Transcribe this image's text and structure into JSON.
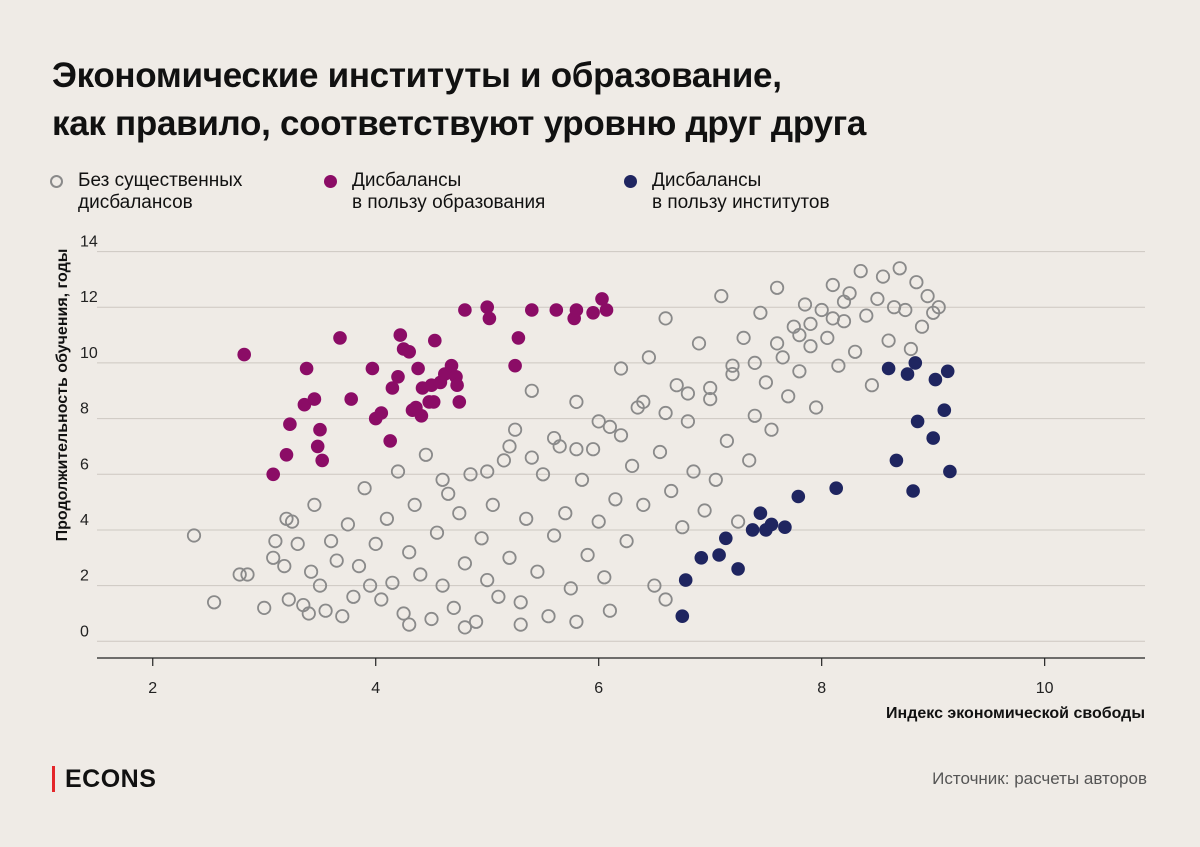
{
  "brand": {
    "name": "ECONS",
    "accent_color": "#e4262a",
    "source": "Источник: расчеты авторов"
  },
  "chart_data": {
    "type": "scatter",
    "title_lines": [
      "Экономические институты и образование,",
      "как правило, соответствуют уровню друг друга"
    ],
    "xlabel": "Индекс экономической свободы",
    "ylabel": "Продолжительность обучения, годы",
    "xlim": [
      1.5,
      10.9
    ],
    "ylim": [
      -0.6,
      14.2
    ],
    "xticks": [
      2,
      4,
      6,
      8,
      10
    ],
    "yticks": [
      0,
      2,
      4,
      6,
      8,
      10,
      12,
      14
    ],
    "grid": "horizontal",
    "legend_position": "top",
    "series": [
      {
        "name": "Без существенных дисбалансов",
        "name_lines": [
          "Без существенных",
          "дисбалансов"
        ],
        "style": "hollow",
        "color": "#8a8a8a",
        "points": [
          [
            2.37,
            3.8
          ],
          [
            2.55,
            1.4
          ],
          [
            2.78,
            2.4
          ],
          [
            2.85,
            2.4
          ],
          [
            3.0,
            1.2
          ],
          [
            3.08,
            3.0
          ],
          [
            3.1,
            3.6
          ],
          [
            3.18,
            2.7
          ],
          [
            3.2,
            4.4
          ],
          [
            3.22,
            1.5
          ],
          [
            3.25,
            4.3
          ],
          [
            3.3,
            3.5
          ],
          [
            3.35,
            1.3
          ],
          [
            3.4,
            1.0
          ],
          [
            3.42,
            2.5
          ],
          [
            3.45,
            4.9
          ],
          [
            3.5,
            2.0
          ],
          [
            3.55,
            1.1
          ],
          [
            3.6,
            3.6
          ],
          [
            3.65,
            2.9
          ],
          [
            3.7,
            0.9
          ],
          [
            3.75,
            4.2
          ],
          [
            3.8,
            1.6
          ],
          [
            3.85,
            2.7
          ],
          [
            3.9,
            5.5
          ],
          [
            3.95,
            2.0
          ],
          [
            4.0,
            3.5
          ],
          [
            4.05,
            1.5
          ],
          [
            4.1,
            4.4
          ],
          [
            4.15,
            2.1
          ],
          [
            4.2,
            6.1
          ],
          [
            4.25,
            1.0
          ],
          [
            4.3,
            3.2
          ],
          [
            4.35,
            4.9
          ],
          [
            4.4,
            2.4
          ],
          [
            4.45,
            6.7
          ],
          [
            4.5,
            0.8
          ],
          [
            4.55,
            3.9
          ],
          [
            4.6,
            2.0
          ],
          [
            4.65,
            5.3
          ],
          [
            4.7,
            1.2
          ],
          [
            4.75,
            4.6
          ],
          [
            4.8,
            2.8
          ],
          [
            4.85,
            6.0
          ],
          [
            4.9,
            0.7
          ],
          [
            4.95,
            3.7
          ],
          [
            5.0,
            2.2
          ],
          [
            5.05,
            4.9
          ],
          [
            5.1,
            1.6
          ],
          [
            5.15,
            6.5
          ],
          [
            5.2,
            3.0
          ],
          [
            5.25,
            7.6
          ],
          [
            5.3,
            1.4
          ],
          [
            5.35,
            4.4
          ],
          [
            5.4,
            9.0
          ],
          [
            5.45,
            2.5
          ],
          [
            5.5,
            6.0
          ],
          [
            5.55,
            0.9
          ],
          [
            5.6,
            3.8
          ],
          [
            5.65,
            7.0
          ],
          [
            5.7,
            4.6
          ],
          [
            5.75,
            1.9
          ],
          [
            5.8,
            8.6
          ],
          [
            5.85,
            5.8
          ],
          [
            5.9,
            3.1
          ],
          [
            5.95,
            6.9
          ],
          [
            6.0,
            4.3
          ],
          [
            6.05,
            2.3
          ],
          [
            6.1,
            7.7
          ],
          [
            6.15,
            5.1
          ],
          [
            6.2,
            9.8
          ],
          [
            6.25,
            3.6
          ],
          [
            6.3,
            6.3
          ],
          [
            6.35,
            8.4
          ],
          [
            6.4,
            4.9
          ],
          [
            6.45,
            10.2
          ],
          [
            6.5,
            2.0
          ],
          [
            6.55,
            6.8
          ],
          [
            6.6,
            11.6
          ],
          [
            6.65,
            5.4
          ],
          [
            6.7,
            9.2
          ],
          [
            6.75,
            4.1
          ],
          [
            6.8,
            7.9
          ],
          [
            6.85,
            6.1
          ],
          [
            6.9,
            10.7
          ],
          [
            6.95,
            4.7
          ],
          [
            7.0,
            8.7
          ],
          [
            7.05,
            5.8
          ],
          [
            7.1,
            12.4
          ],
          [
            7.15,
            7.2
          ],
          [
            7.2,
            9.6
          ],
          [
            7.25,
            4.3
          ],
          [
            7.3,
            10.9
          ],
          [
            7.35,
            6.5
          ],
          [
            7.4,
            8.1
          ],
          [
            7.45,
            11.8
          ],
          [
            7.5,
            9.3
          ],
          [
            7.55,
            7.6
          ],
          [
            7.6,
            12.7
          ],
          [
            7.65,
            10.2
          ],
          [
            7.7,
            8.8
          ],
          [
            7.75,
            11.3
          ],
          [
            7.8,
            9.7
          ],
          [
            7.85,
            12.1
          ],
          [
            7.9,
            10.6
          ],
          [
            7.95,
            8.4
          ],
          [
            8.0,
            11.9
          ],
          [
            8.05,
            10.9
          ],
          [
            8.1,
            12.8
          ],
          [
            8.15,
            9.9
          ],
          [
            8.2,
            11.5
          ],
          [
            8.25,
            12.5
          ],
          [
            8.3,
            10.4
          ],
          [
            8.35,
            13.3
          ],
          [
            8.4,
            11.7
          ],
          [
            8.45,
            9.2
          ],
          [
            8.5,
            12.3
          ],
          [
            8.55,
            13.1
          ],
          [
            8.6,
            10.8
          ],
          [
            8.65,
            12.0
          ],
          [
            8.7,
            13.4
          ],
          [
            8.75,
            11.9
          ],
          [
            8.8,
            10.5
          ],
          [
            8.85,
            12.9
          ],
          [
            8.9,
            11.3
          ],
          [
            8.95,
            12.4
          ],
          [
            9.0,
            11.8
          ],
          [
            9.05,
            12.0
          ],
          [
            5.2,
            7.0
          ],
          [
            5.6,
            7.3
          ],
          [
            6.0,
            7.9
          ],
          [
            6.4,
            8.6
          ],
          [
            6.8,
            8.9
          ],
          [
            7.2,
            9.9
          ],
          [
            7.6,
            10.7
          ],
          [
            7.9,
            11.4
          ],
          [
            8.2,
            12.2
          ],
          [
            4.6,
            5.8
          ],
          [
            5.0,
            6.1
          ],
          [
            5.4,
            6.6
          ],
          [
            5.8,
            6.9
          ],
          [
            6.2,
            7.4
          ],
          [
            6.6,
            8.2
          ],
          [
            7.0,
            9.1
          ],
          [
            7.4,
            10.0
          ],
          [
            7.8,
            11.0
          ],
          [
            8.1,
            11.6
          ],
          [
            4.3,
            0.6
          ],
          [
            4.8,
            0.5
          ],
          [
            5.3,
            0.6
          ],
          [
            5.8,
            0.7
          ],
          [
            6.1,
            1.1
          ],
          [
            6.6,
            1.5
          ]
        ]
      },
      {
        "name": "Дисбалансы в пользу образования",
        "name_lines": [
          "Дисбалансы",
          "в пользу образования"
        ],
        "style": "filled",
        "color": "#8b0c66",
        "points": [
          [
            2.82,
            10.3
          ],
          [
            3.08,
            6.0
          ],
          [
            3.2,
            6.7
          ],
          [
            3.23,
            7.8
          ],
          [
            3.36,
            8.5
          ],
          [
            3.38,
            9.8
          ],
          [
            3.45,
            8.7
          ],
          [
            3.48,
            7.0
          ],
          [
            3.5,
            7.6
          ],
          [
            3.52,
            6.5
          ],
          [
            3.68,
            10.9
          ],
          [
            3.78,
            8.7
          ],
          [
            3.97,
            9.8
          ],
          [
            4.0,
            8.0
          ],
          [
            4.05,
            8.2
          ],
          [
            4.13,
            7.2
          ],
          [
            4.15,
            9.1
          ],
          [
            4.2,
            9.5
          ],
          [
            4.22,
            11.0
          ],
          [
            4.25,
            10.5
          ],
          [
            4.3,
            10.4
          ],
          [
            4.33,
            8.3
          ],
          [
            4.36,
            8.4
          ],
          [
            4.38,
            9.8
          ],
          [
            4.41,
            8.1
          ],
          [
            4.42,
            9.1
          ],
          [
            4.48,
            8.6
          ],
          [
            4.5,
            9.2
          ],
          [
            4.52,
            8.6
          ],
          [
            4.53,
            10.8
          ],
          [
            4.58,
            9.3
          ],
          [
            4.62,
            9.6
          ],
          [
            4.68,
            9.9
          ],
          [
            4.72,
            9.5
          ],
          [
            4.73,
            9.2
          ],
          [
            4.75,
            8.6
          ],
          [
            4.8,
            11.9
          ],
          [
            5.0,
            12.0
          ],
          [
            5.02,
            11.6
          ],
          [
            5.25,
            9.9
          ],
          [
            5.28,
            10.9
          ],
          [
            5.4,
            11.9
          ],
          [
            5.62,
            11.9
          ],
          [
            5.78,
            11.6
          ],
          [
            5.8,
            11.9
          ],
          [
            5.95,
            11.8
          ],
          [
            6.03,
            12.3
          ],
          [
            6.07,
            11.9
          ]
        ]
      },
      {
        "name": "Дисбалансы в пользу институтов",
        "name_lines": [
          "Дисбалансы",
          "в пользу институтов"
        ],
        "style": "filled",
        "color": "#1f2560",
        "points": [
          [
            6.75,
            0.9
          ],
          [
            6.78,
            2.2
          ],
          [
            6.92,
            3.0
          ],
          [
            7.08,
            3.1
          ],
          [
            7.14,
            3.7
          ],
          [
            7.25,
            2.6
          ],
          [
            7.38,
            4.0
          ],
          [
            7.45,
            4.6
          ],
          [
            7.5,
            4.0
          ],
          [
            7.55,
            4.2
          ],
          [
            7.67,
            4.1
          ],
          [
            7.79,
            5.2
          ],
          [
            8.13,
            5.5
          ],
          [
            8.6,
            9.8
          ],
          [
            8.67,
            6.5
          ],
          [
            8.77,
            9.6
          ],
          [
            8.82,
            5.4
          ],
          [
            8.84,
            10.0
          ],
          [
            8.86,
            7.9
          ],
          [
            9.0,
            7.3
          ],
          [
            9.02,
            9.4
          ],
          [
            9.1,
            8.3
          ],
          [
            9.13,
            9.7
          ],
          [
            9.15,
            6.1
          ]
        ]
      }
    ]
  }
}
